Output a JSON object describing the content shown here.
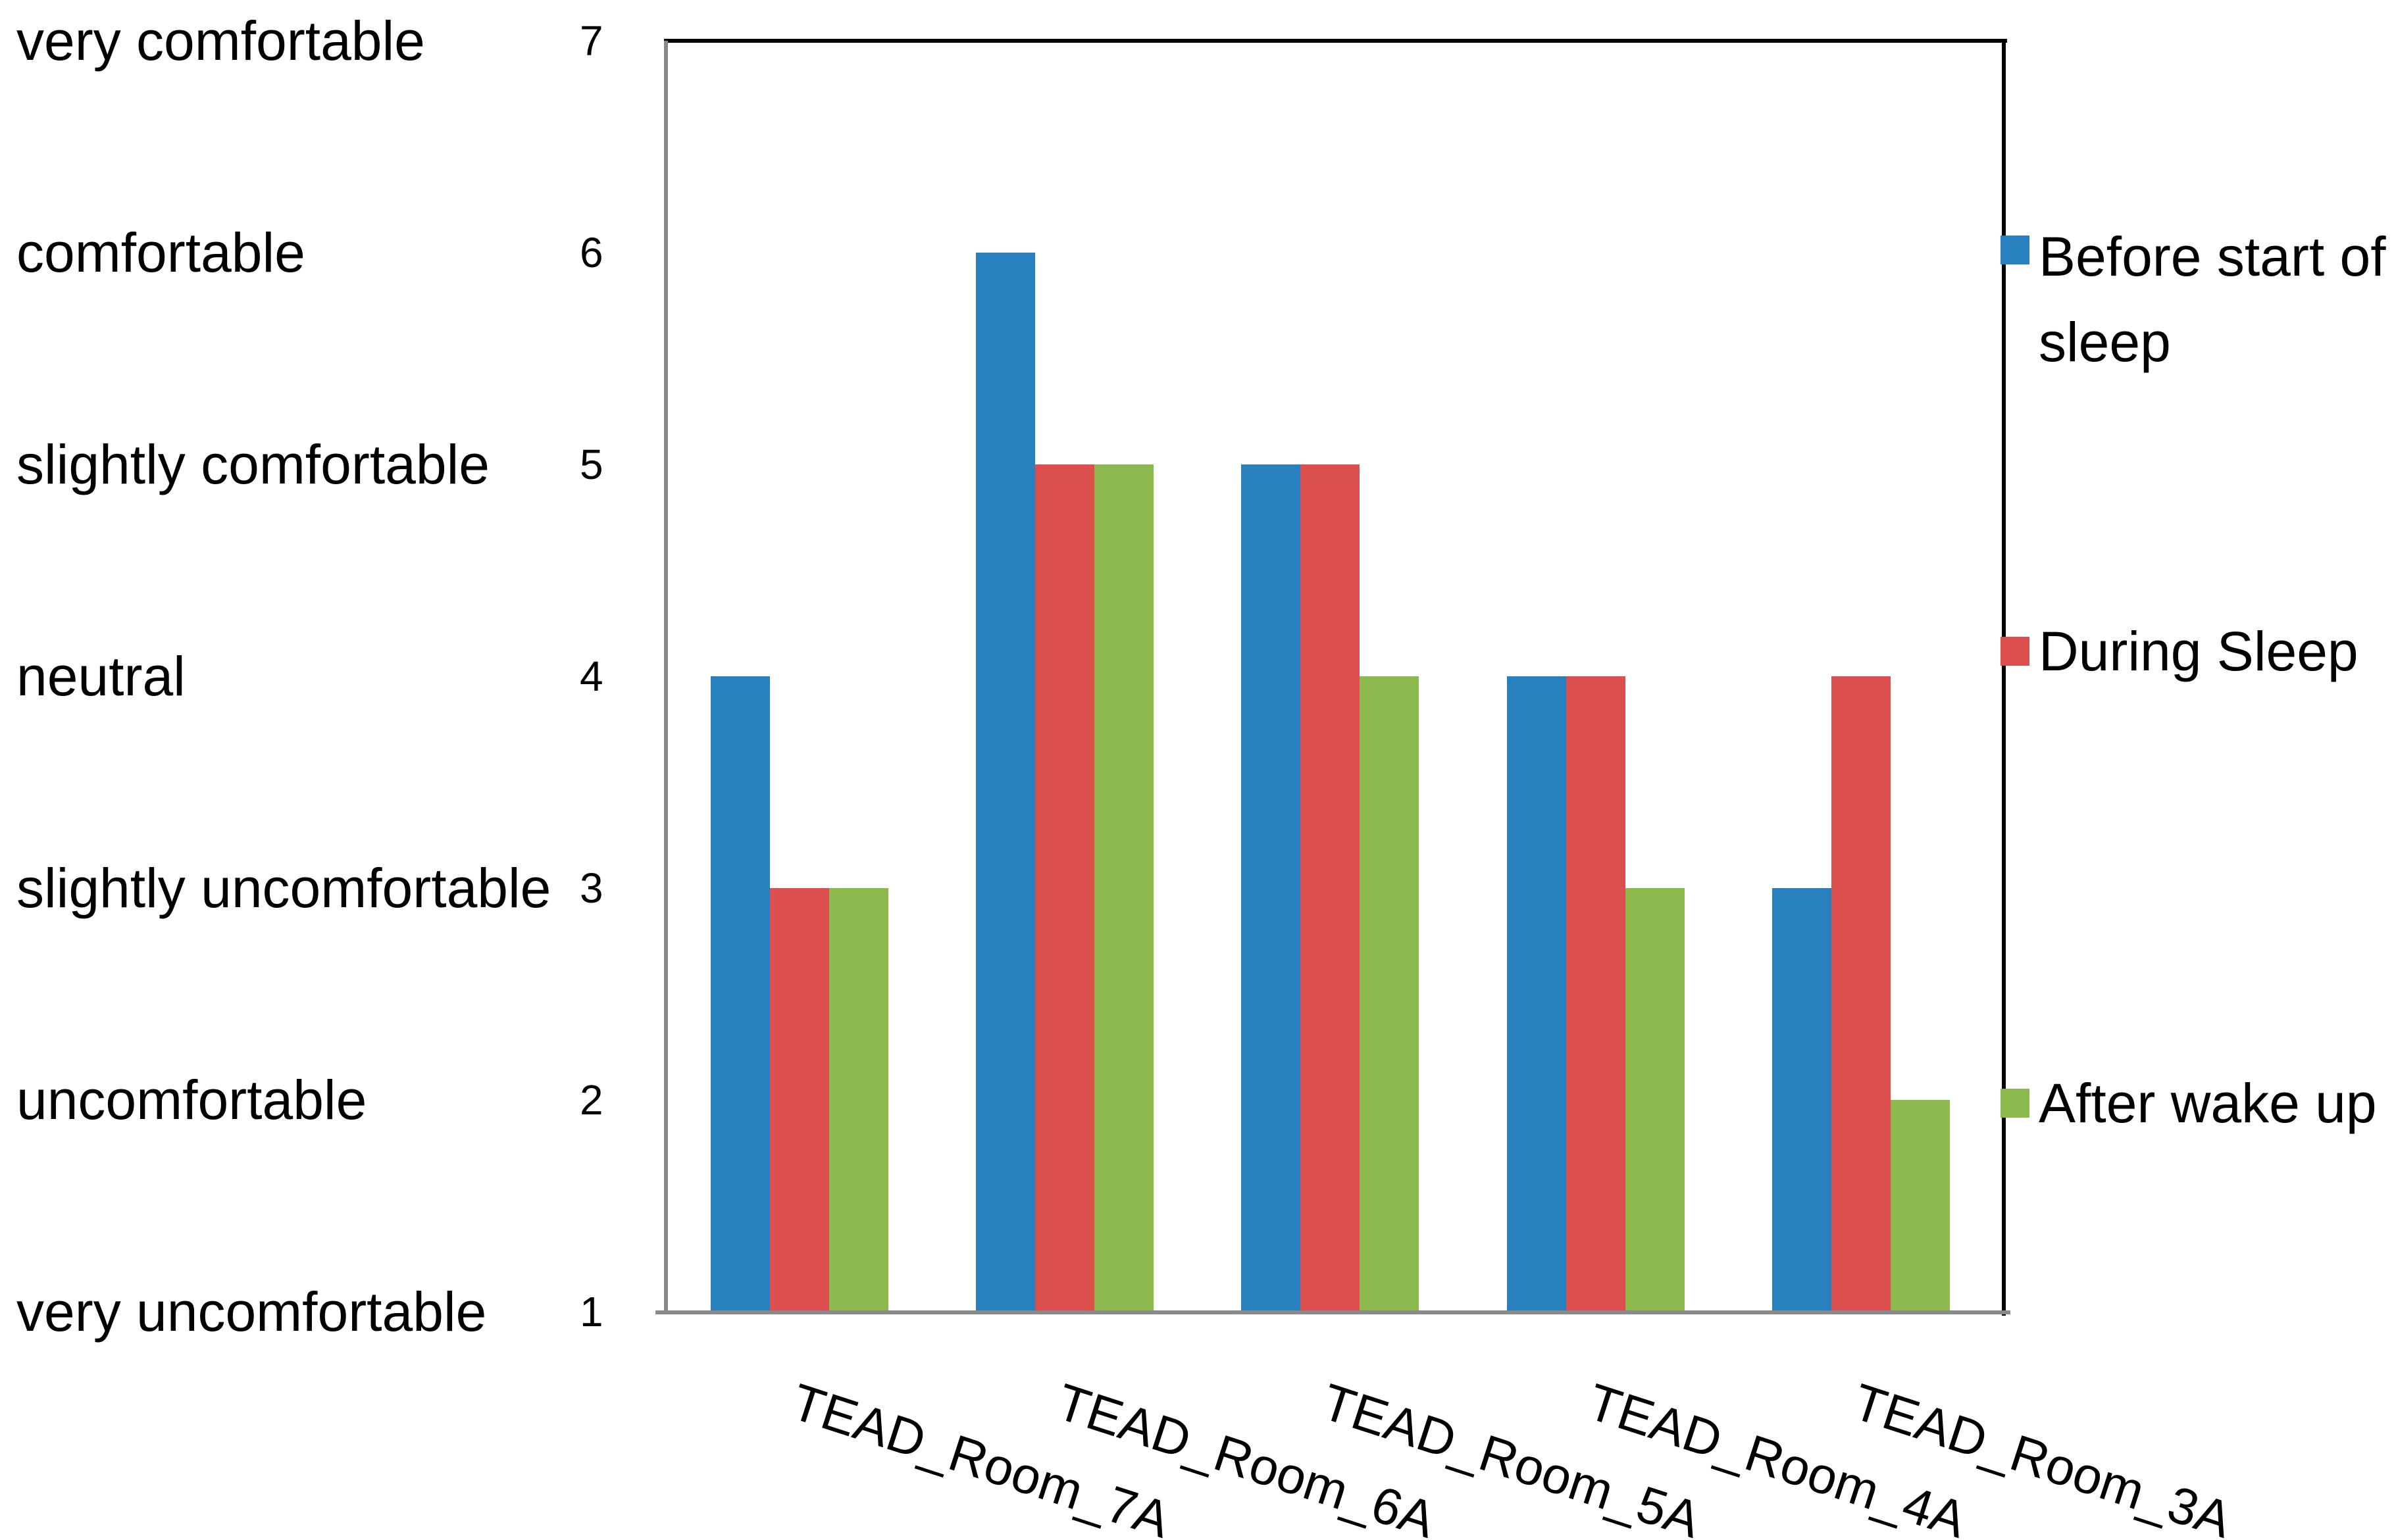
{
  "chart_data": {
    "type": "bar",
    "title": "",
    "categories": [
      "TEAD_Room_7A",
      "TEAD_Room_6A",
      "TEAD_Room_5A",
      "TEAD_Room_4A",
      "TEAD_Room_3A"
    ],
    "series": [
      {
        "name": "Before start of sleep",
        "color": "#2880BE",
        "values": [
          4,
          6,
          5,
          4,
          3
        ]
      },
      {
        "name": "During Sleep",
        "color": "#DB504E",
        "values": [
          3,
          5,
          5,
          4,
          4
        ]
      },
      {
        "name": "After wake up",
        "color": "#8BB94E",
        "values": [
          3,
          5,
          4,
          3,
          2
        ]
      }
    ],
    "y_axis": {
      "min": 1,
      "max": 7,
      "ticks": [
        {
          "value": 7,
          "label": "very comfortable"
        },
        {
          "value": 6,
          "label": "comfortable"
        },
        {
          "value": 5,
          "label": "slightly comfortable"
        },
        {
          "value": 4,
          "label": "neutral"
        },
        {
          "value": 3,
          "label": "slightly uncomfortable"
        },
        {
          "value": 2,
          "label": "uncomfortable"
        },
        {
          "value": 1,
          "label": "very uncomfortable"
        }
      ]
    },
    "legend_position": "right",
    "grid": false
  },
  "colors": {
    "background": "#FFFFFF",
    "text": "#000000",
    "axis_gray": "#898989",
    "border_black": "#000000"
  }
}
